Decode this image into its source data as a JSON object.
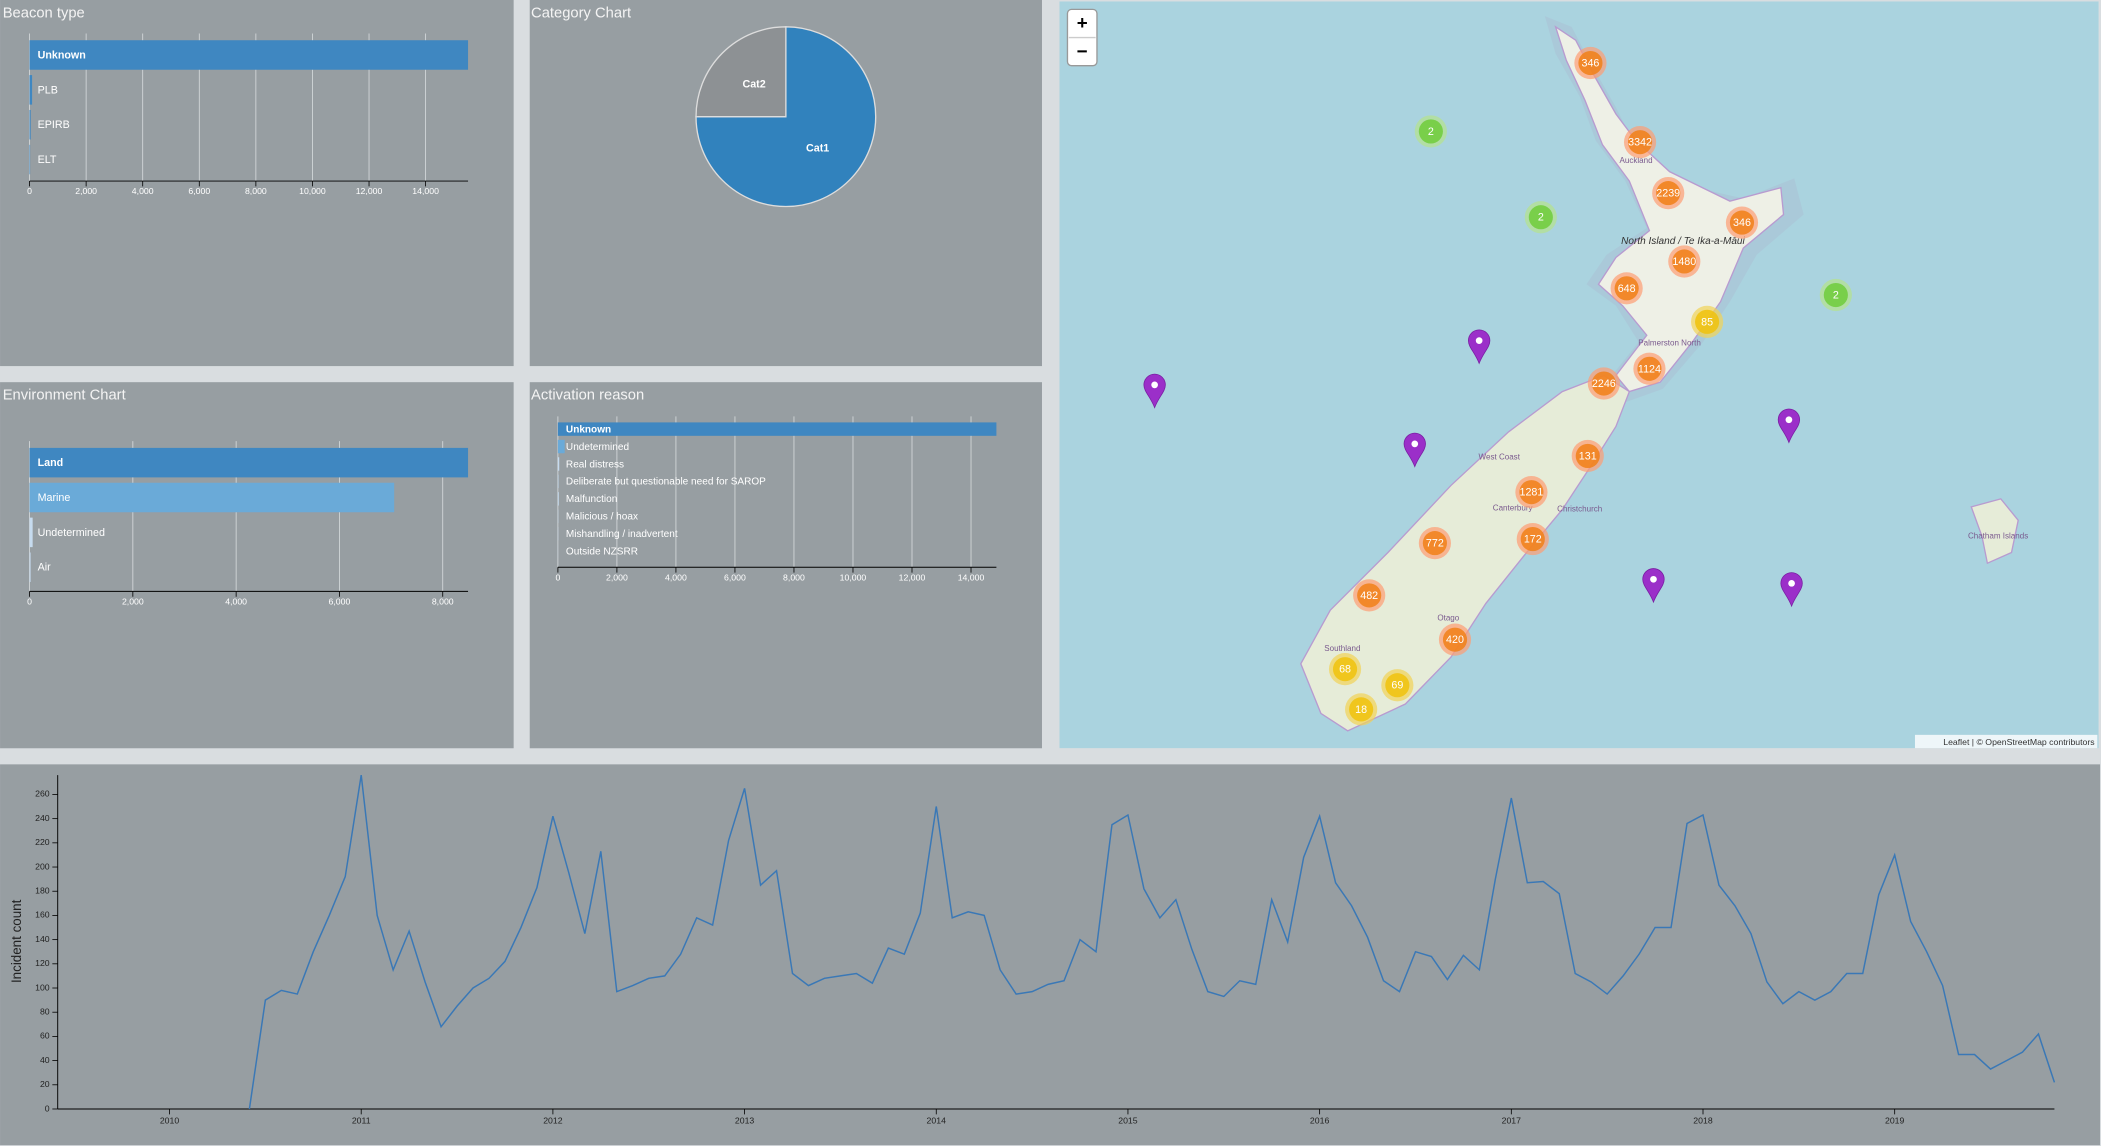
{
  "chart_data": [
    {
      "type": "bar",
      "orientation": "horizontal",
      "title": "Beacon type",
      "categories": [
        "Unknown",
        "PLB",
        "EPIRB",
        "ELT"
      ],
      "values": [
        15500,
        90,
        40,
        20
      ],
      "colors": [
        "#3f87c1",
        "#3f87c1",
        "#3f87c1",
        "#3f87c1"
      ],
      "xlim": [
        0,
        15500
      ],
      "xticks": [
        0,
        {
          "value": 2000,
          "label": "2,000"
        },
        {
          "value": 4000,
          "label": "4,000"
        },
        {
          "value": 6000,
          "label": "6,000"
        },
        {
          "value": 8000,
          "label": "8,000"
        },
        {
          "value": 10000,
          "label": "10,000"
        },
        {
          "value": 12000,
          "label": "12,000"
        },
        {
          "value": 14000,
          "label": "14,000"
        }
      ],
      "grid": true
    },
    {
      "type": "pie",
      "title": "Category Chart",
      "categories": [
        "Cat1",
        "Cat2"
      ],
      "values": [
        75,
        25
      ],
      "colors": [
        "#3182bd",
        "#8d9194"
      ]
    },
    {
      "type": "bar",
      "orientation": "horizontal",
      "title": "Environment Chart",
      "categories": [
        "Land",
        "Marine",
        "Undetermined",
        "Air"
      ],
      "values": [
        8490,
        7060,
        60,
        20
      ],
      "colors": [
        "#3f87c1",
        "#6aaad8",
        "#c6dbef",
        "#c6dbef"
      ],
      "xlim": [
        0,
        8490
      ],
      "xticks": [
        0,
        {
          "value": 2000,
          "label": "2,000"
        },
        {
          "value": 4000,
          "label": "4,000"
        },
        {
          "value": 6000,
          "label": "6,000"
        },
        {
          "value": 8000,
          "label": "8,000"
        }
      ],
      "grid": true
    },
    {
      "type": "bar",
      "orientation": "horizontal",
      "title": "Activation reason",
      "categories": [
        "Unknown",
        "Undetermined",
        "Real distress",
        "Deliberate but questionable need for SAROP",
        "Malfunction",
        "Malicious / hoax",
        "Mishandling / inadvertent",
        "Outside NZSRR"
      ],
      "values": [
        14860,
        230,
        45,
        20,
        30,
        12,
        10,
        5
      ],
      "colors": [
        "#3f87c1",
        "#6aaad8",
        "#c6dbef",
        "#c6dbef",
        "#c6dbef",
        "#c6dbef",
        "#c6dbef",
        "#c6dbef"
      ],
      "xlim": [
        0,
        14860
      ],
      "xticks": [
        0,
        {
          "value": 2000,
          "label": "2,000"
        },
        {
          "value": 4000,
          "label": "4,000"
        },
        {
          "value": 6000,
          "label": "6,000"
        },
        {
          "value": 8000,
          "label": "8,000"
        },
        {
          "value": 10000,
          "label": "10,000"
        },
        {
          "value": 12000,
          "label": "12,000"
        },
        {
          "value": 14000,
          "label": "14,000"
        }
      ],
      "grid": true
    },
    {
      "type": "line",
      "y_label": "Incident count",
      "color": "#3a78b6",
      "x": [
        "2010-06",
        "2010-07",
        "2010-08",
        "2010-09",
        "2010-10",
        "2010-11",
        "2010-12",
        "2011-01",
        "2011-02",
        "2011-03",
        "2011-04",
        "2011-05",
        "2011-06",
        "2011-07",
        "2011-08",
        "2011-09",
        "2011-10",
        "2011-11",
        "2011-12",
        "2012-01",
        "2012-02",
        "2012-03",
        "2012-04",
        "2012-05",
        "2012-06",
        "2012-07",
        "2012-08",
        "2012-09",
        "2012-10",
        "2012-11",
        "2012-12",
        "2013-01",
        "2013-02",
        "2013-03",
        "2013-04",
        "2013-05",
        "2013-06",
        "2013-07",
        "2013-08",
        "2013-09",
        "2013-10",
        "2013-11",
        "2013-12",
        "2014-01",
        "2014-02",
        "2014-03",
        "2014-04",
        "2014-05",
        "2014-06",
        "2014-07",
        "2014-08",
        "2014-09",
        "2014-10",
        "2014-11",
        "2014-12",
        "2015-01",
        "2015-02",
        "2015-03",
        "2015-04",
        "2015-05",
        "2015-06",
        "2015-07",
        "2015-08",
        "2015-09",
        "2015-10",
        "2015-11",
        "2015-12",
        "2016-01",
        "2016-02",
        "2016-03",
        "2016-04",
        "2016-05",
        "2016-06",
        "2016-07",
        "2016-08",
        "2016-09",
        "2016-10",
        "2016-11",
        "2016-12",
        "2017-01",
        "2017-02",
        "2017-03",
        "2017-04",
        "2017-05",
        "2017-06",
        "2017-07",
        "2017-08",
        "2017-09",
        "2017-10",
        "2017-11",
        "2017-12",
        "2018-01",
        "2018-02",
        "2018-03",
        "2018-04",
        "2018-05",
        "2018-06",
        "2018-07",
        "2018-08",
        "2018-09",
        "2018-10",
        "2018-11",
        "2018-12",
        "2019-01",
        "2019-02",
        "2019-03",
        "2019-04",
        "2019-05",
        "2019-06",
        "2019-07",
        "2019-08",
        "2019-09",
        "2019-10",
        "2019-11"
      ],
      "values": [
        0,
        90,
        98,
        95,
        130,
        160,
        192,
        276,
        160,
        115,
        147,
        105,
        68,
        85,
        100,
        108,
        122,
        150,
        183,
        242,
        195,
        145,
        213,
        97,
        102,
        108,
        110,
        128,
        158,
        152,
        222,
        265,
        185,
        197,
        112,
        102,
        108,
        110,
        112,
        104,
        133,
        128,
        162,
        250,
        158,
        163,
        160,
        115,
        95,
        97,
        103,
        106,
        140,
        130,
        235,
        243,
        182,
        158,
        173,
        132,
        97,
        93,
        106,
        103,
        173,
        138,
        208,
        242,
        187,
        168,
        142,
        106,
        97,
        130,
        126,
        107,
        127,
        115,
        190,
        257,
        187,
        188,
        178,
        112,
        105,
        95,
        110,
        128,
        150,
        150,
        236,
        243,
        185,
        168,
        145,
        105,
        87,
        97,
        90,
        97,
        112,
        112,
        177,
        210,
        155,
        130,
        102,
        45,
        45,
        33,
        40,
        47,
        62,
        22
      ],
      "xlim": [
        "2009-06",
        "2019-11"
      ],
      "xticks": [
        2010,
        2011,
        2012,
        2013,
        2014,
        2015,
        2016,
        2017,
        2018,
        2019
      ],
      "ylim": [
        0,
        276
      ],
      "yticks": [
        0,
        20,
        40,
        60,
        80,
        100,
        120,
        140,
        160,
        180,
        200,
        220,
        240,
        260
      ]
    }
  ],
  "map": {
    "zoom_in": "+",
    "zoom_out": "−",
    "clusters": [
      346,
      3342,
      2239,
      346,
      1480,
      648,
      85,
      1124,
      2246,
      131,
      1281,
      172,
      772,
      482,
      420,
      68,
      69,
      18,
      2,
      2,
      2
    ],
    "places": [
      "Auckland",
      "North Island / Te Ika-a-Māui",
      "Palmerston North",
      "West Coast",
      "Canterbury",
      "Christchurch",
      "Otago",
      "Southland",
      "Chatham Islands"
    ],
    "attribution": "Leaflet | © OpenStreetMap contributors"
  }
}
